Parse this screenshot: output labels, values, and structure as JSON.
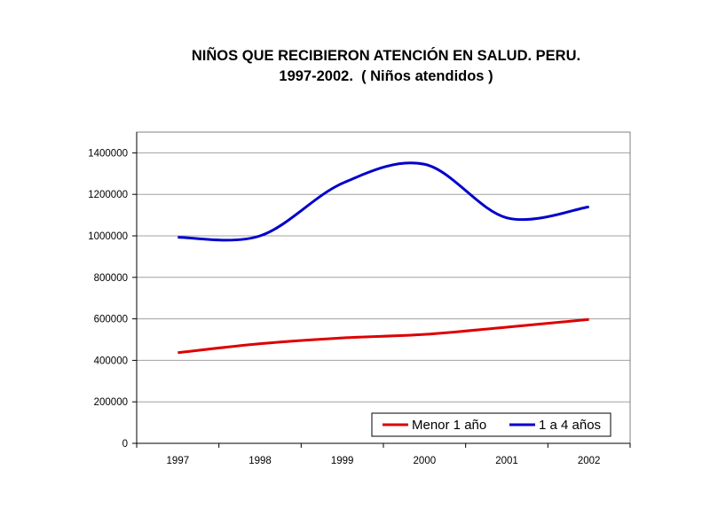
{
  "chart_data": {
    "type": "line",
    "title_line1": "NIÑOS QUE RECIBIERON ATENCIÓN EN SALUD. PERU.",
    "title_line2": "1997-2002.  ( Niños atendidos )",
    "categories": [
      "1997",
      "1998",
      "1999",
      "2000",
      "2001",
      "2002"
    ],
    "ylim": [
      0,
      1500000
    ],
    "yticks": [
      0,
      200000,
      400000,
      600000,
      800000,
      1000000,
      1200000,
      1400000
    ],
    "grid": true,
    "legend_position": "bottom-right",
    "series": [
      {
        "name": "Menor 1 año",
        "color": "#dd0000",
        "values": [
          437000,
          480000,
          508000,
          525000,
          560000,
          597000
        ]
      },
      {
        "name": "1 a 4 años",
        "color": "#0000cc",
        "values": [
          993000,
          1000000,
          1253000,
          1345000,
          1087000,
          1140000
        ]
      }
    ]
  }
}
